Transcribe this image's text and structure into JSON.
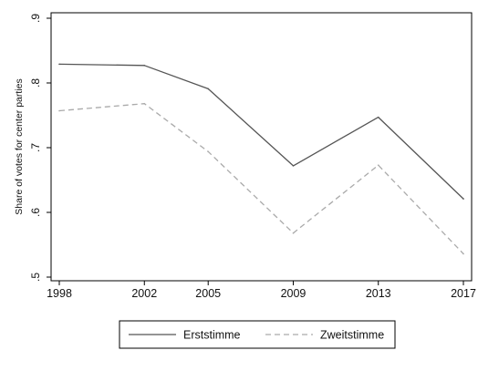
{
  "chart_data": {
    "type": "line",
    "title": "",
    "xlabel": "",
    "ylabel": "Share of votes for center parties",
    "x": [
      1998,
      2002,
      2005,
      2009,
      2013,
      2017
    ],
    "x_tick_labels": [
      "1998",
      "2002",
      "2005",
      "2009",
      "2013",
      "2017"
    ],
    "ylim": [
      0.5,
      0.9
    ],
    "y_ticks": [
      0.5,
      0.6,
      0.7,
      0.8,
      0.9
    ],
    "y_tick_labels": [
      ".5",
      ".6",
      ".7",
      ".8",
      ".9"
    ],
    "grid": false,
    "legend_position": "bottom",
    "series": [
      {
        "name": "Erststimme",
        "values": [
          0.829,
          0.827,
          0.791,
          0.672,
          0.747,
          0.621
        ],
        "color": "#555555",
        "style": "solid"
      },
      {
        "name": "Zweitstimme",
        "values": [
          0.757,
          0.768,
          0.694,
          0.568,
          0.673,
          0.536
        ],
        "color": "#aaaaaa",
        "style": "dashed"
      }
    ]
  }
}
